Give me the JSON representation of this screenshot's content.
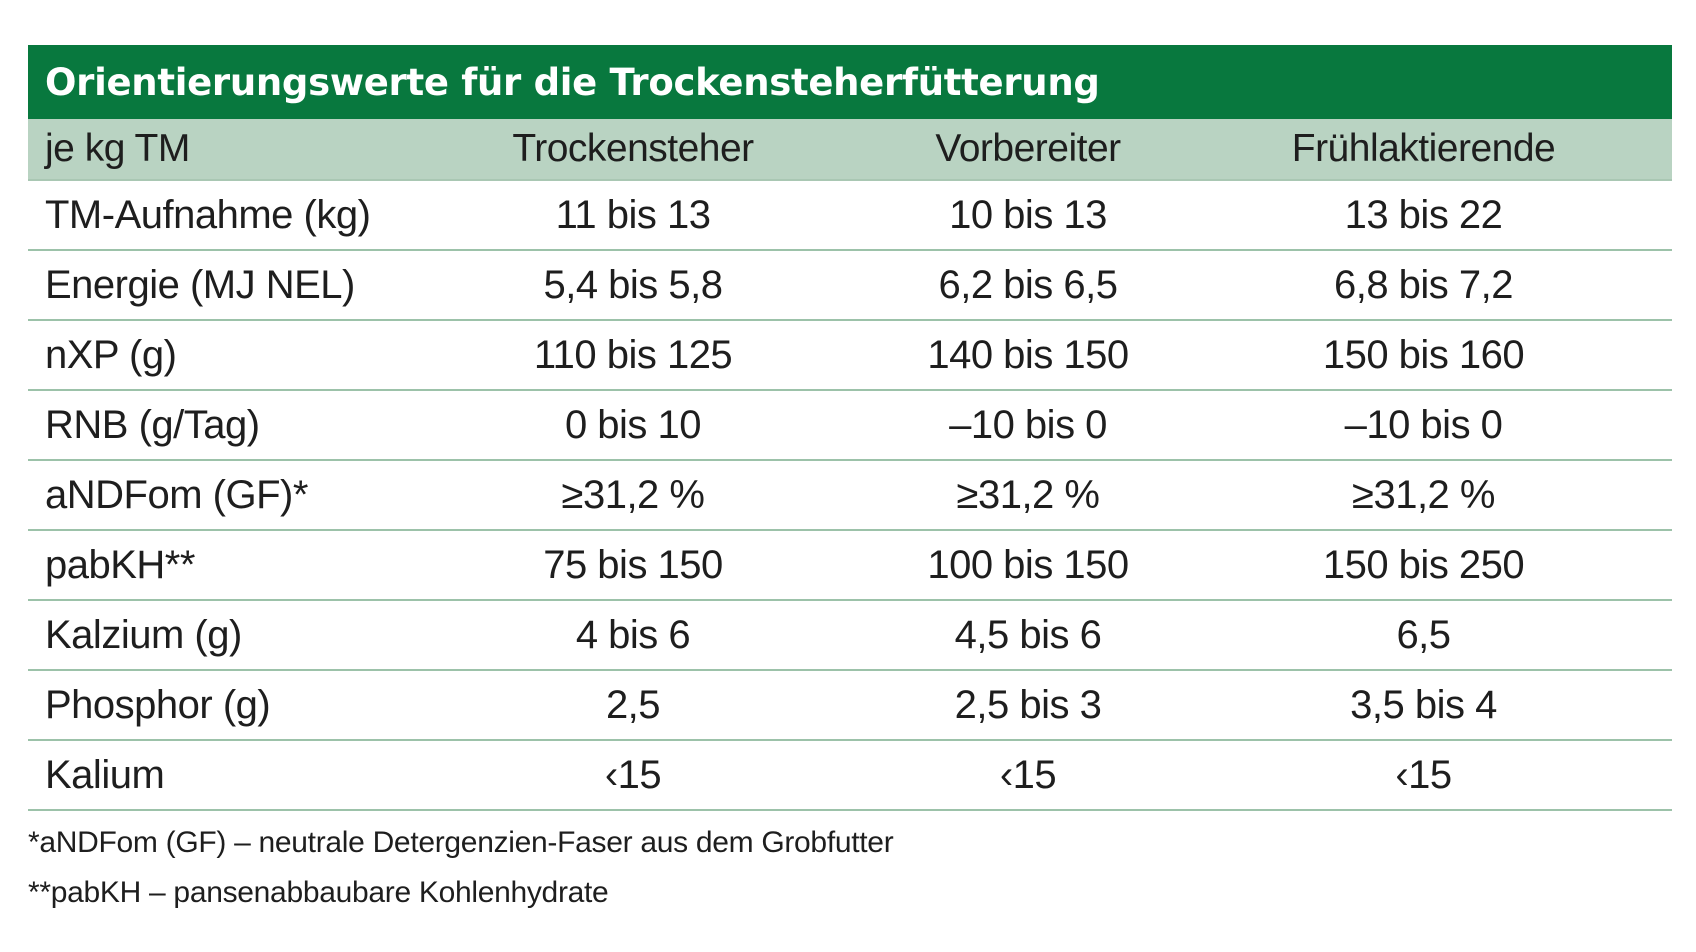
{
  "title": "Orientierungswerte für die Trockensteherfütterung",
  "header": [
    "je kg TM",
    "Trockensteher",
    "Vorbereiter",
    "Frühlaktierende"
  ],
  "rows": [
    [
      "TM-Aufnahme (kg)",
      "11 bis 13",
      "10 bis 13",
      "13 bis 22"
    ],
    [
      "Energie (MJ NEL)",
      "5,4 bis 5,8",
      "6,2 bis 6,5",
      "6,8 bis 7,2"
    ],
    [
      "nXP (g)",
      "110 bis 125",
      "140 bis 150",
      "150 bis 160"
    ],
    [
      "RNB (g/Tag)",
      "0 bis 10",
      "–10 bis 0",
      "–10 bis 0"
    ],
    [
      "aNDFom (GF)*",
      "≥31,2 %",
      "≥31,2 %",
      "≥31,2 %"
    ],
    [
      "pabKH**",
      "75 bis 150",
      "100 bis 150",
      "150 bis 250"
    ],
    [
      "Kalzium (g)",
      "4 bis 6",
      "4,5 bis 6",
      "6,5"
    ],
    [
      "Phosphor (g)",
      "2,5",
      "2,5 bis 3",
      "3,5 bis 4"
    ],
    [
      "Kalium",
      "‹15",
      "‹15",
      "‹15"
    ]
  ],
  "footnotes": [
    "*aNDFom (GF) – neutrale Detergenzien-Faser aus dem Grobfutter",
    "**pabKH – pansenabbaubare Kohlenhydrate"
  ],
  "colors": {
    "title_bg": "#08783e",
    "header_bg": "#b9d3c2",
    "rule": "#9cc2a9"
  }
}
